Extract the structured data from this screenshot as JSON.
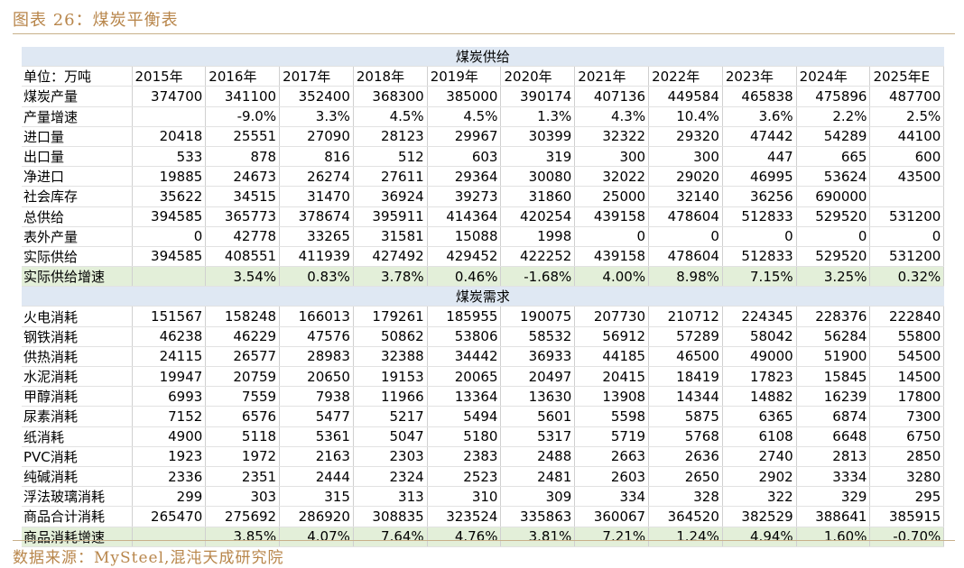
{
  "title": "图表 26：煤炭平衡表",
  "source": "数据来源：MySteel,混沌天成研究院",
  "header": {
    "label": "单位：万吨",
    "years": [
      "2015年",
      "2016年",
      "2017年",
      "2018年",
      "2019年",
      "2020年",
      "2021年",
      "2022年",
      "2023年",
      "2024年",
      "2025年E"
    ]
  },
  "sections": [
    {
      "title": "煤炭供给",
      "rows": [
        {
          "label": "煤炭产量",
          "values": [
            "374700",
            "341100",
            "352400",
            "368300",
            "385000",
            "390174",
            "407136",
            "449584",
            "465838",
            "475896",
            "487700"
          ]
        },
        {
          "label": "产量增速",
          "values": [
            "",
            "-9.0%",
            "3.3%",
            "4.5%",
            "4.5%",
            "1.3%",
            "4.3%",
            "10.4%",
            "3.6%",
            "2.2%",
            "2.5%"
          ]
        },
        {
          "label": "进口量",
          "values": [
            "20418",
            "25551",
            "27090",
            "28123",
            "29967",
            "30399",
            "32322",
            "29320",
            "47442",
            "54289",
            "44100"
          ]
        },
        {
          "label": "出口量",
          "values": [
            "533",
            "878",
            "816",
            "512",
            "603",
            "319",
            "300",
            "300",
            "447",
            "665",
            "600"
          ]
        },
        {
          "label": "净进口",
          "values": [
            "19885",
            "24673",
            "26274",
            "27611",
            "29364",
            "30080",
            "32022",
            "29020",
            "46995",
            "53624",
            "43500"
          ]
        },
        {
          "label": "社会库存",
          "values": [
            "35622",
            "34515",
            "31470",
            "36924",
            "39273",
            "31860",
            "25000",
            "32140",
            "36256",
            "690000",
            ""
          ]
        },
        {
          "label": "总供给",
          "values": [
            "394585",
            "365773",
            "378674",
            "395911",
            "414364",
            "420254",
            "439158",
            "478604",
            "512833",
            "529520",
            "531200"
          ]
        },
        {
          "label": "表外产量",
          "values": [
            "0",
            "42778",
            "33265",
            "31581",
            "15088",
            "1998",
            "0",
            "0",
            "0",
            "0",
            "0"
          ]
        },
        {
          "label": "实际供给",
          "values": [
            "394585",
            "408551",
            "411939",
            "427492",
            "429452",
            "422252",
            "439158",
            "478604",
            "512833",
            "529520",
            "531200"
          ]
        },
        {
          "label": "实际供给增速",
          "highlight": true,
          "values": [
            "",
            "3.54%",
            "0.83%",
            "3.78%",
            "0.46%",
            "-1.68%",
            "4.00%",
            "8.98%",
            "7.15%",
            "3.25%",
            "0.32%"
          ]
        }
      ]
    },
    {
      "title": "煤炭需求",
      "rows": [
        {
          "label": "火电消耗",
          "values": [
            "151567",
            "158248",
            "166013",
            "179261",
            "185955",
            "190075",
            "207730",
            "210712",
            "224345",
            "228376",
            "222840"
          ]
        },
        {
          "label": "钢铁消耗",
          "values": [
            "46238",
            "46229",
            "47576",
            "50862",
            "53806",
            "58532",
            "56912",
            "57289",
            "58042",
            "56284",
            "55800"
          ]
        },
        {
          "label": "供热消耗",
          "values": [
            "24115",
            "26577",
            "28983",
            "32388",
            "34442",
            "36933",
            "44185",
            "46500",
            "49000",
            "51900",
            "54500"
          ]
        },
        {
          "label": "水泥消耗",
          "values": [
            "19947",
            "20759",
            "20650",
            "19153",
            "20065",
            "20497",
            "20415",
            "18419",
            "17823",
            "15845",
            "14500"
          ]
        },
        {
          "label": "甲醇消耗",
          "values": [
            "6993",
            "7559",
            "7938",
            "11966",
            "13364",
            "13630",
            "13908",
            "14344",
            "14882",
            "16239",
            "17800"
          ]
        },
        {
          "label": "尿素消耗",
          "values": [
            "7152",
            "6576",
            "5477",
            "5217",
            "5494",
            "5601",
            "5598",
            "5875",
            "6365",
            "6874",
            "7300"
          ]
        },
        {
          "label": "纸消耗",
          "values": [
            "4900",
            "5118",
            "5361",
            "5047",
            "5180",
            "5317",
            "5719",
            "5768",
            "6108",
            "6648",
            "6750"
          ]
        },
        {
          "label": "PVC消耗",
          "values": [
            "1923",
            "1972",
            "2163",
            "2303",
            "2383",
            "2488",
            "2663",
            "2636",
            "2740",
            "2813",
            "2850"
          ]
        },
        {
          "label": "纯碱消耗",
          "values": [
            "2336",
            "2351",
            "2444",
            "2324",
            "2523",
            "2481",
            "2603",
            "2650",
            "2902",
            "3334",
            "3280"
          ]
        },
        {
          "label": "浮法玻璃消耗",
          "values": [
            "299",
            "303",
            "315",
            "313",
            "310",
            "309",
            "334",
            "328",
            "322",
            "329",
            "295"
          ]
        },
        {
          "label": "商品合计消耗",
          "values": [
            "265470",
            "275692",
            "286920",
            "308835",
            "323524",
            "335863",
            "360067",
            "364520",
            "382529",
            "388641",
            "385915"
          ]
        },
        {
          "label": "商品消耗增速",
          "highlight": true,
          "values": [
            "",
            "3.85%",
            "4.07%",
            "7.64%",
            "4.76%",
            "3.81%",
            "7.21%",
            "1.24%",
            "4.94%",
            "1.60%",
            "-0.70%"
          ]
        }
      ]
    }
  ]
}
